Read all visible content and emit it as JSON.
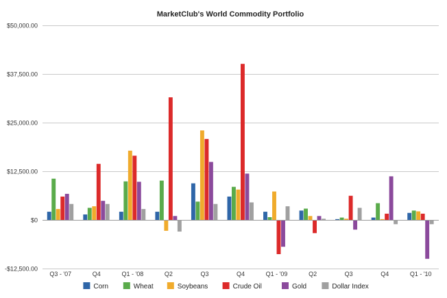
{
  "chart_data": {
    "type": "bar",
    "title": "MarketClub's World Commodity Portfolio",
    "xlabel": "",
    "ylabel": "",
    "ylim": [
      -12500,
      50000
    ],
    "yticks": [
      50000,
      37500,
      25000,
      12500,
      0,
      -12500
    ],
    "ytick_labels": [
      "$50,000.00",
      "$37,500.00",
      "$25,000.00",
      "$12,500.00",
      "$0",
      "-$12,500.00"
    ],
    "grid": true,
    "legend_position": "bottom",
    "categories": [
      "Q3 - '07",
      "Q4",
      "Q1 - '08",
      "Q2",
      "Q3",
      "Q4",
      "Q1 - '09",
      "Q2",
      "Q3",
      "Q4",
      "Q1 - '10"
    ],
    "series": [
      {
        "name": "Corn",
        "color": "#2f66a8",
        "values": [
          2100,
          1400,
          2100,
          2100,
          9400,
          6000,
          2100,
          2400,
          200,
          600,
          1800
        ]
      },
      {
        "name": "Wheat",
        "color": "#5aab4b",
        "values": [
          10600,
          3100,
          9900,
          10100,
          4700,
          8500,
          700,
          2900,
          600,
          4300,
          2400
        ]
      },
      {
        "name": "Soybeans",
        "color": "#f0ab2c",
        "values": [
          2800,
          3500,
          17800,
          -2800,
          23000,
          7800,
          7300,
          1000,
          300,
          200,
          2200
        ]
      },
      {
        "name": "Crude Oil",
        "color": "#dc2a2a",
        "values": [
          6000,
          14400,
          16500,
          31500,
          20800,
          40100,
          -8800,
          -3400,
          6200,
          1600,
          1600
        ]
      },
      {
        "name": "Gold",
        "color": "#8b4a9c",
        "values": [
          6700,
          4900,
          9800,
          1000,
          14900,
          11900,
          -6900,
          1000,
          -2500,
          11200,
          -10000
        ]
      },
      {
        "name": "Dollar Index",
        "color": "#a0a0a0",
        "values": [
          4100,
          4100,
          2800,
          -3000,
          4100,
          4500,
          3500,
          300,
          3100,
          -1100,
          -1100
        ]
      }
    ]
  }
}
